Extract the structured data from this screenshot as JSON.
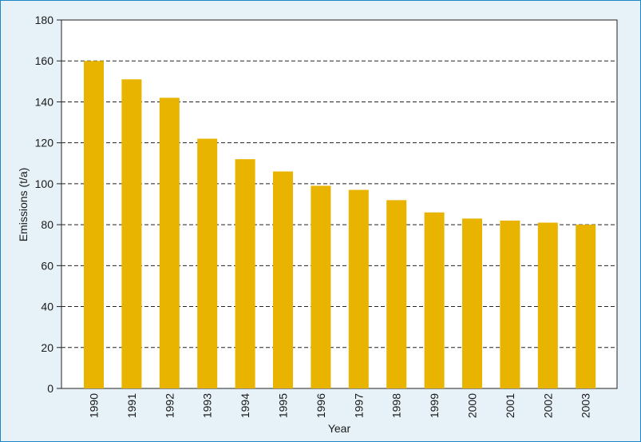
{
  "chart_data": {
    "type": "bar",
    "categories": [
      "1990",
      "1991",
      "1992",
      "1993",
      "1994",
      "1995",
      "1996",
      "1997",
      "1998",
      "1999",
      "2000",
      "2001",
      "2002",
      "2003"
    ],
    "values": [
      160,
      151,
      142,
      122,
      112,
      106,
      99,
      97,
      92,
      86,
      83,
      82,
      81,
      80
    ],
    "xlabel": "Year",
    "ylabel": "Emissions (t/a)",
    "ylim": [
      0,
      180
    ],
    "yticks": [
      0,
      20,
      40,
      60,
      80,
      100,
      120,
      140,
      160,
      180
    ],
    "grid": "horizontal dashed",
    "bar_color": "#e8b400",
    "plot_background": "#ffffff",
    "frame_background": "#e6f1f8",
    "frame_border_color": "#1d86c8"
  }
}
